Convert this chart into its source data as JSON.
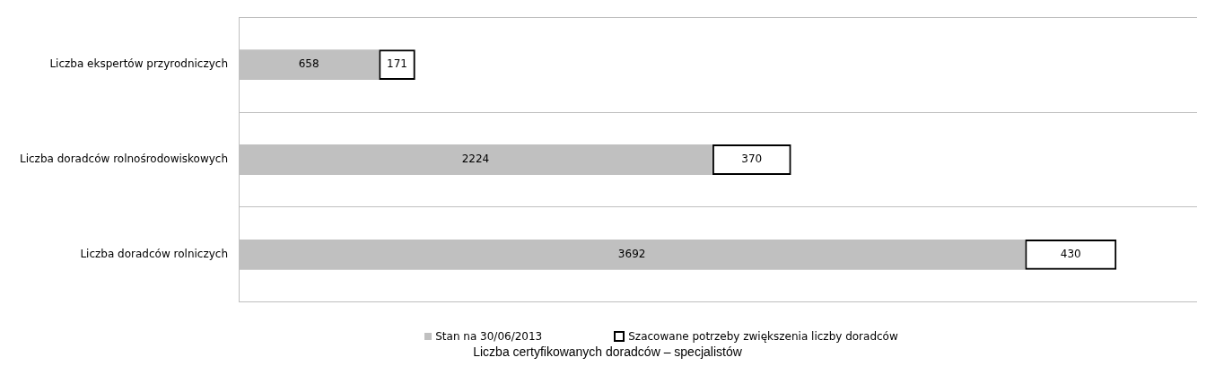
{
  "chart_data": {
    "type": "bar",
    "orientation": "horizontal",
    "stacked": true,
    "title": "Liczba certyfikowanych doradców – specjalistów",
    "categories": [
      "Liczba ekspertów przyrodniczych",
      "Liczba doradców rolnośrodowiskowych",
      "Liczba doradców rolniczych"
    ],
    "series": [
      {
        "name": "Stan na 30/06/2013",
        "color": "#c0c0c0",
        "values": [
          658,
          2224,
          3692
        ]
      },
      {
        "name": "Szacowane potrzeby zwiększenia liczby doradców",
        "color": "#000000",
        "values": [
          171,
          370,
          430
        ]
      }
    ],
    "data_labels": true,
    "grid": "y",
    "legend": "bottom",
    "tick_labels": "y"
  }
}
